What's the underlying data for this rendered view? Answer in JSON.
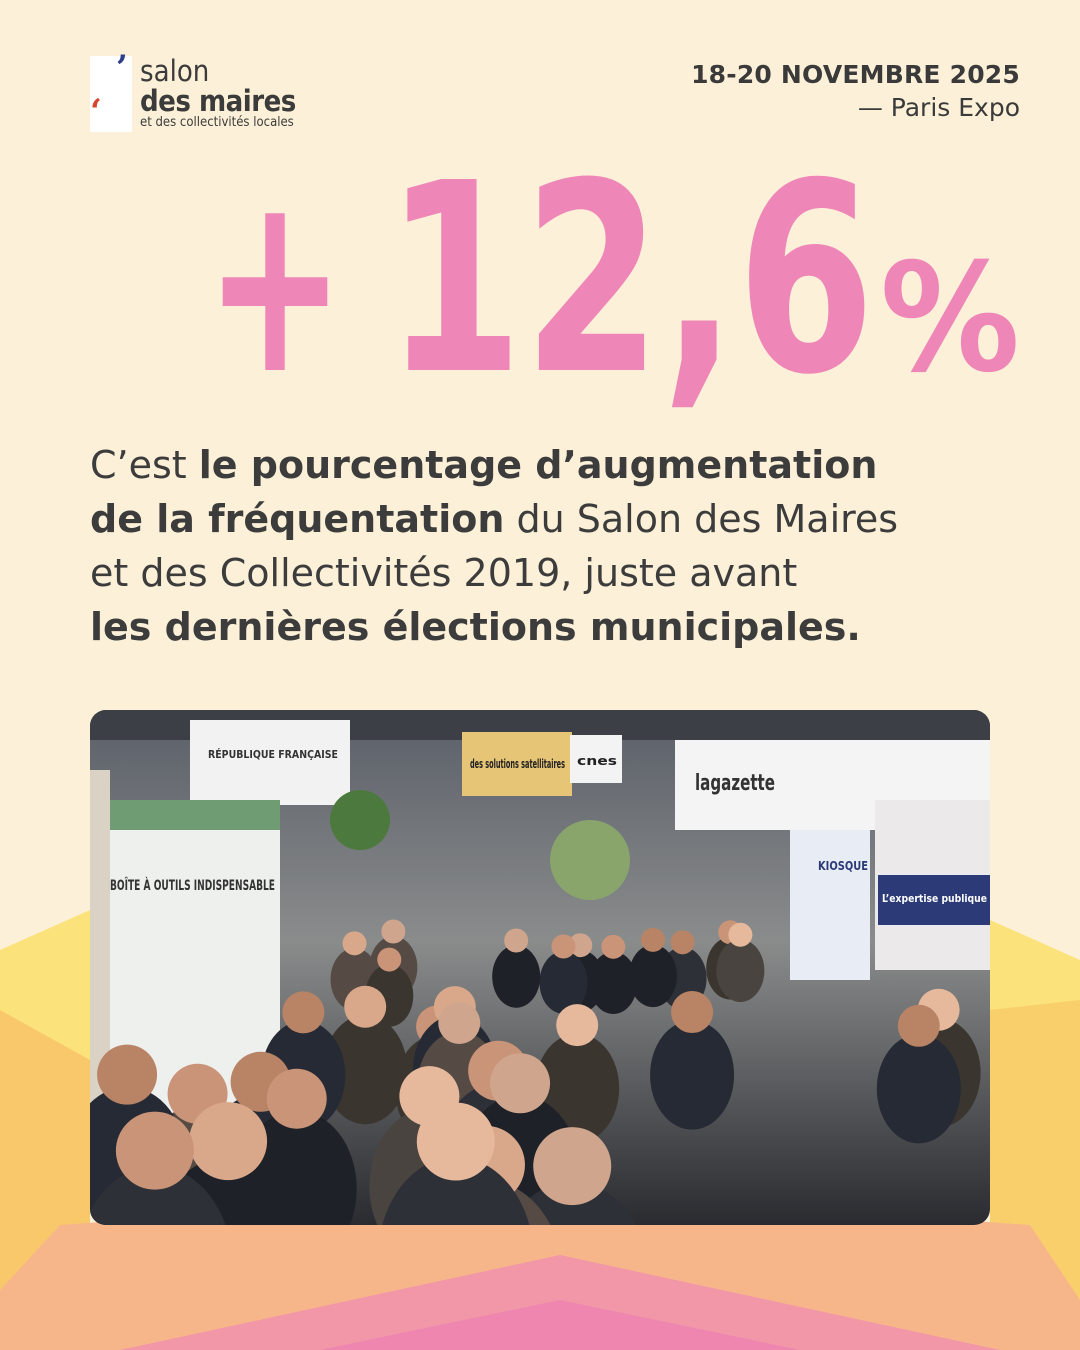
{
  "logo": {
    "line1": "salon",
    "line2": "des maires",
    "line3": "et des collectivités locales"
  },
  "event": {
    "dates": "18-20 NOVEMBRE 2025",
    "place": "— Paris Expo"
  },
  "stat": {
    "sign": "+",
    "number": "12,6",
    "unit": "%"
  },
  "paragraph": {
    "lines": [
      [
        {
          "text": "C’est ",
          "bold": false
        },
        {
          "text": "le pourcentage d’augmentation",
          "bold": true
        }
      ],
      [
        {
          "text": "de la fréquentation",
          "bold": true
        },
        {
          "text": " du Salon des Maires",
          "bold": false
        }
      ],
      [
        {
          "text": "et des Collectivités 2019, juste avant",
          "bold": false
        }
      ],
      [
        {
          "text": "les dernières élections municipales.",
          "bold": true
        }
      ]
    ]
  },
  "photo": {
    "signs": [
      "RÉPUBLIQUE FRANÇAISE",
      "des solutions satellitaires",
      "cnes",
      "lagazette",
      "KIOSQUE",
      "L’expertise publique",
      "BOÎTE À OUTILS INDISPENSABLE"
    ]
  }
}
